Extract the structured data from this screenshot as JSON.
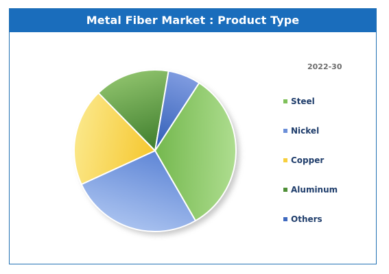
{
  "title": "Metal Fiber Market : Product Type",
  "chart_data": {
    "type": "pie",
    "title": "Metal Fiber Market : Product Type",
    "period": "2022-30",
    "legend_position": "right",
    "slices": [
      {
        "name": "Steel",
        "value": 32.5,
        "color_light": "#aedd8f",
        "color_dark": "#74b84e",
        "swatch": "#7fc05a"
      },
      {
        "name": "Nickel",
        "value": 26.5,
        "color_light": "#a8c1ef",
        "color_dark": "#5f86d6",
        "swatch": "#6b8fd8"
      },
      {
        "name": "Copper",
        "value": 19.5,
        "color_light": "#fbe788",
        "color_dark": "#f5c72e",
        "swatch": "#f7cf3d"
      },
      {
        "name": "Aluminum",
        "value": 15.0,
        "color_light": "#8cc06a",
        "color_dark": "#3e7d2c",
        "swatch": "#4f8f37"
      },
      {
        "name": "Others",
        "value": 6.5,
        "color_light": "#7f9be0",
        "color_dark": "#2f5db6",
        "swatch": "#3f69bf"
      }
    ]
  }
}
